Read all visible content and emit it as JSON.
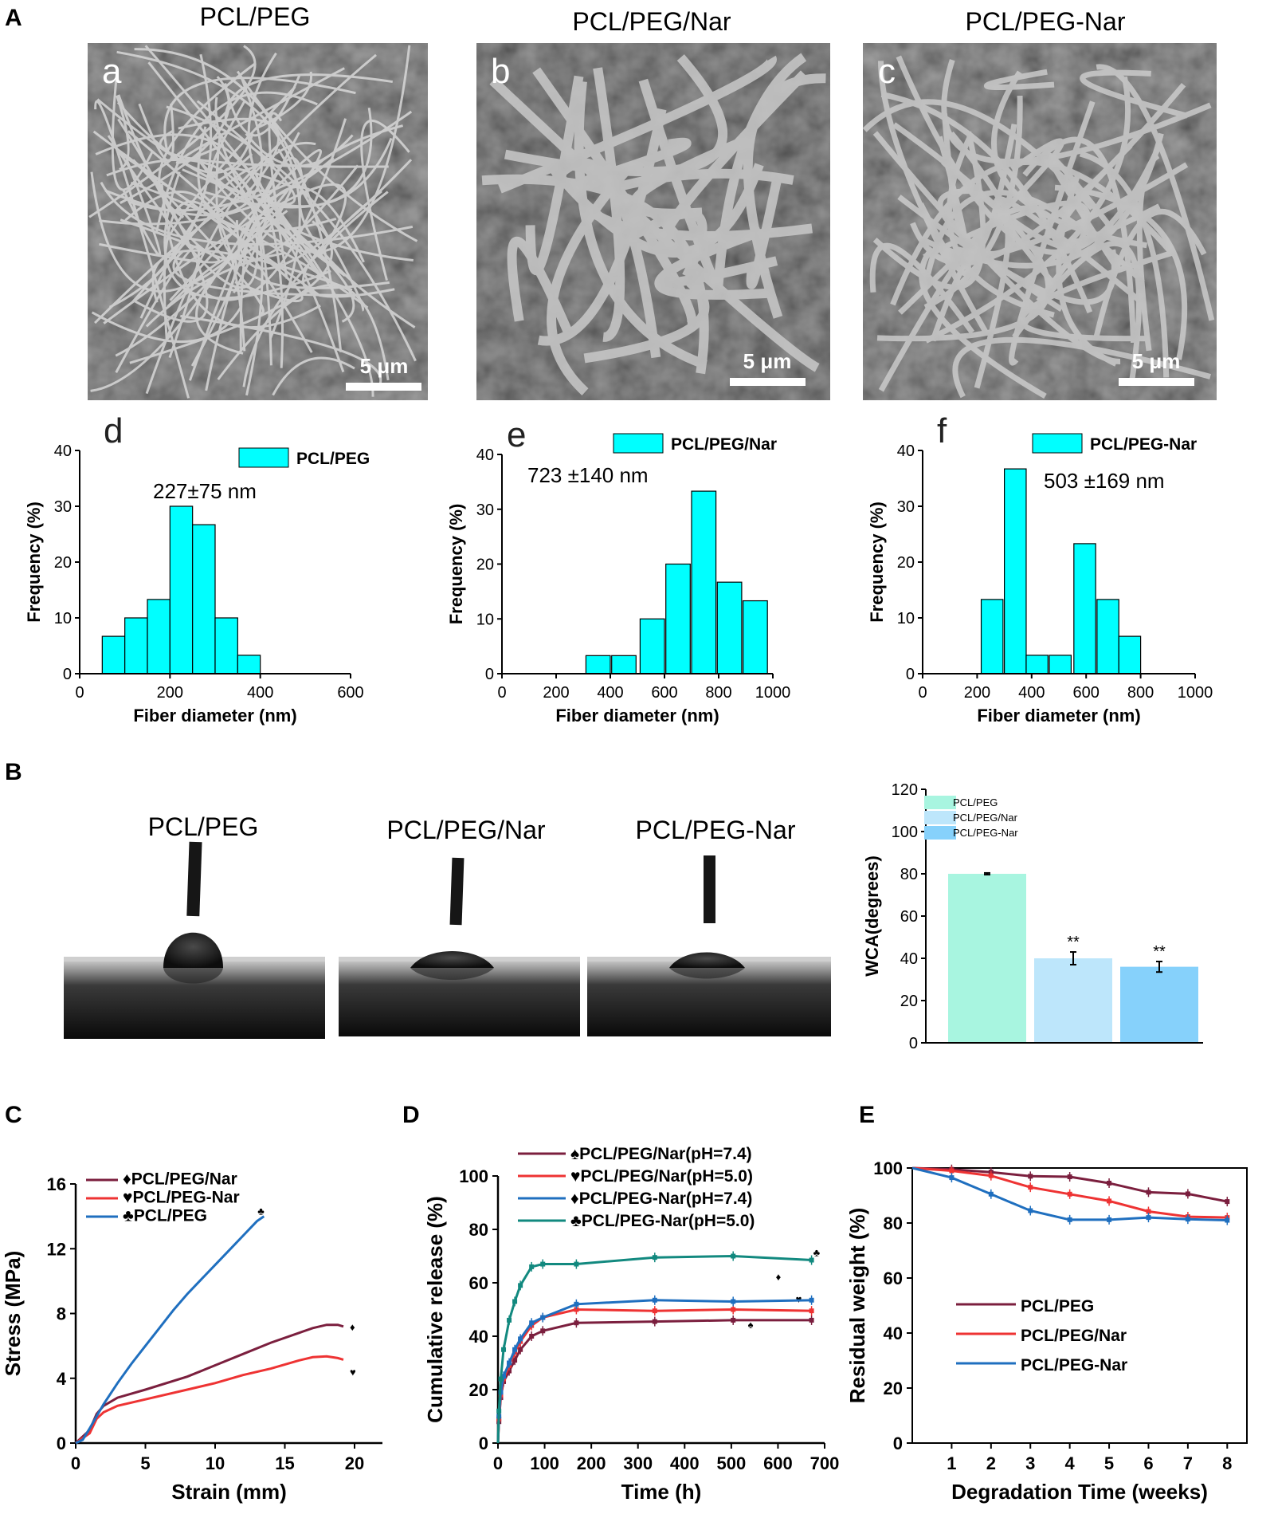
{
  "panel_labels": {
    "A": "A",
    "B": "B",
    "C": "C",
    "D": "D",
    "E": "E"
  },
  "sem": {
    "titles": [
      "PCL/PEG",
      "PCL/PEG/Nar",
      "PCL/PEG-Nar"
    ],
    "letters": [
      "a",
      "b",
      "c"
    ],
    "scale_bar": "5 μm"
  },
  "contact": {
    "titles": [
      "PCL/PEG",
      "PCL/PEG/Nar",
      "PCL/PEG-Nar"
    ]
  },
  "colors": {
    "hist": "#00ffff",
    "maroon": "#7b1f3e",
    "red": "#ee3333",
    "blue": "#1f6fbf",
    "teal": "#12897f",
    "wca1": "#a8f5e0",
    "wca2": "#bde6fb",
    "wca3": "#86d1fb"
  },
  "chart_data": [
    {
      "id": "d",
      "type": "bar",
      "letter": "d",
      "legend": "PCL/PEG",
      "annotation": "227±75 nm",
      "xlabel": "Fiber diameter (nm)",
      "ylabel": "Frequency (%)",
      "xlim": [
        0,
        600
      ],
      "ylim": [
        0,
        40
      ],
      "xticks": [
        0,
        200,
        400,
        600
      ],
      "yticks": [
        0,
        10,
        20,
        30,
        40
      ],
      "bin_width": 50,
      "bins": [
        {
          "center": 75,
          "value": 6.7
        },
        {
          "center": 125,
          "value": 10
        },
        {
          "center": 175,
          "value": 13.3
        },
        {
          "center": 225,
          "value": 30
        },
        {
          "center": 275,
          "value": 26.7
        },
        {
          "center": 325,
          "value": 10
        },
        {
          "center": 375,
          "value": 3.3
        }
      ]
    },
    {
      "id": "e",
      "type": "bar",
      "letter": "e",
      "legend": "PCL/PEG/Nar",
      "annotation": "723 ±140 nm",
      "xlabel": "Fiber diameter (nm)",
      "ylabel": "Frequency (%)",
      "xlim": [
        0,
        1000
      ],
      "ylim": [
        0,
        40
      ],
      "xticks": [
        0,
        200,
        400,
        600,
        800,
        1000
      ],
      "yticks": [
        0,
        10,
        20,
        30,
        40
      ],
      "bin_width": 90,
      "bins": [
        {
          "center": 355,
          "value": 3.3
        },
        {
          "center": 450,
          "value": 3.3
        },
        {
          "center": 555,
          "value": 10
        },
        {
          "center": 650,
          "value": 20
        },
        {
          "center": 745,
          "value": 33.3
        },
        {
          "center": 840,
          "value": 16.7
        },
        {
          "center": 935,
          "value": 13.3
        }
      ]
    },
    {
      "id": "f",
      "type": "bar",
      "letter": "f",
      "legend": "PCL/PEG-Nar",
      "annotation": "503 ±169 nm",
      "xlabel": "Fiber diameter (nm)",
      "ylabel": "Frequency (%)",
      "xlim": [
        0,
        1000
      ],
      "ylim": [
        0,
        40
      ],
      "xticks": [
        0,
        200,
        400,
        600,
        800,
        1000
      ],
      "yticks": [
        0,
        10,
        20,
        30,
        40
      ],
      "bin_width": 80,
      "bins": [
        {
          "center": 255,
          "value": 13.3
        },
        {
          "center": 340,
          "value": 36.7
        },
        {
          "center": 420,
          "value": 3.3
        },
        {
          "center": 505,
          "value": 3.3
        },
        {
          "center": 595,
          "value": 23.3
        },
        {
          "center": 680,
          "value": 13.3
        },
        {
          "center": 760,
          "value": 6.7
        }
      ]
    },
    {
      "id": "wca",
      "type": "bar",
      "ylabel": "WCA(degrees)",
      "ylim": [
        0,
        120
      ],
      "yticks": [
        0,
        20,
        40,
        60,
        80,
        100,
        120
      ],
      "categories": [
        "PCL/PEG",
        "PCL/PEG/Nar",
        "PCL/PEG-Nar"
      ],
      "values": [
        80,
        40,
        36
      ],
      "errors": [
        0.4,
        3,
        2.5
      ],
      "significance": [
        "",
        "**",
        "**"
      ]
    },
    {
      "id": "C",
      "type": "line",
      "xlabel": "Strain (mm)",
      "ylabel": "Stress (MPa)",
      "xlim": [
        0,
        22
      ],
      "ylim": [
        0,
        16
      ],
      "xticks": [
        0,
        5,
        10,
        15,
        20
      ],
      "yticks": [
        0,
        4,
        8,
        12,
        16
      ],
      "series": [
        {
          "name": "♦PCL/PEG/Nar",
          "marker": "♦",
          "x": [
            0,
            1,
            1.5,
            2,
            3,
            5,
            8,
            10,
            12,
            14,
            16,
            17,
            18,
            18.8,
            19.2
          ],
          "y": [
            0,
            0.8,
            1.8,
            2.3,
            2.8,
            3.3,
            4.1,
            4.8,
            5.5,
            6.2,
            6.8,
            7.1,
            7.3,
            7.3,
            7.2
          ]
        },
        {
          "name": "♥PCL/PEG-Nar",
          "marker": "♥",
          "x": [
            0,
            1,
            1.5,
            2,
            3,
            5,
            8,
            10,
            12,
            14,
            16,
            17,
            18,
            18.8,
            19.2
          ],
          "y": [
            0,
            0.6,
            1.5,
            1.9,
            2.3,
            2.7,
            3.3,
            3.7,
            4.2,
            4.6,
            5.1,
            5.3,
            5.35,
            5.25,
            5.15
          ]
        },
        {
          "name": "♣PCL/PEG",
          "marker": "♣",
          "x": [
            0,
            0.5,
            1,
            2,
            3,
            4,
            5,
            6,
            7,
            8,
            9,
            10,
            11,
            12,
            13,
            13.5
          ],
          "y": [
            0,
            0.2,
            0.9,
            2.4,
            3.7,
            4.9,
            6.0,
            7.1,
            8.2,
            9.2,
            10.1,
            11.0,
            11.9,
            12.8,
            13.7,
            14.0
          ]
        }
      ]
    },
    {
      "id": "D",
      "type": "line",
      "xlabel": "Time (h)",
      "ylabel": "Cumulative release (%)",
      "xlim": [
        0,
        700
      ],
      "ylim": [
        0,
        100
      ],
      "xticks": [
        0,
        100,
        200,
        300,
        400,
        500,
        600,
        700
      ],
      "yticks": [
        0,
        20,
        40,
        60,
        80,
        100
      ],
      "series": [
        {
          "name": "♠PCL/PEG/Nar(pH=7.4)",
          "marker": "♠",
          "x": [
            0,
            2,
            6,
            12,
            24,
            36,
            48,
            72,
            96,
            168,
            336,
            504,
            672
          ],
          "y": [
            0,
            8,
            17,
            23,
            27,
            31,
            35,
            40,
            42,
            45,
            45.5,
            46,
            46
          ]
        },
        {
          "name": "♥PCL/PEG/Nar(pH=5.0)",
          "marker": "♥",
          "x": [
            0,
            2,
            6,
            12,
            24,
            36,
            48,
            72,
            96,
            168,
            336,
            504,
            672
          ],
          "y": [
            0,
            9,
            18,
            24,
            29,
            34,
            38,
            44,
            47,
            50,
            49.5,
            50,
            49.5
          ]
        },
        {
          "name": "♦PCL/PEG-Nar(pH=7.4)",
          "marker": "♦",
          "x": [
            0,
            2,
            6,
            12,
            24,
            36,
            48,
            72,
            96,
            168,
            336,
            504,
            672
          ],
          "y": [
            0,
            10,
            19,
            25,
            30,
            35,
            39,
            45,
            47,
            52,
            53.5,
            53,
            53.5
          ]
        },
        {
          "name": "♣PCL/PEG-Nar(pH=5.0)",
          "marker": "♣",
          "x": [
            0,
            2,
            6,
            12,
            24,
            36,
            48,
            72,
            96,
            168,
            336,
            504,
            672
          ],
          "y": [
            0,
            12,
            24,
            35,
            46,
            53,
            59,
            66,
            67,
            67,
            69.5,
            70,
            68.5
          ]
        }
      ]
    },
    {
      "id": "E",
      "type": "line",
      "xlabel": "Degradation Time (weeks)",
      "ylabel": "Residual weight (%)",
      "xlim": [
        0,
        8.5
      ],
      "ylim": [
        0,
        100
      ],
      "xticks": [
        1,
        2,
        3,
        4,
        5,
        6,
        7,
        8
      ],
      "yticks": [
        0,
        20,
        40,
        60,
        80,
        100
      ],
      "series": [
        {
          "name": "PCL/PEG",
          "x": [
            0,
            1,
            2,
            3,
            4,
            5,
            6,
            7,
            8
          ],
          "y": [
            100,
            99.5,
            98.5,
            97,
            96.8,
            94.5,
            91.2,
            90.6,
            87.8
          ]
        },
        {
          "name": "PCL/PEG/Nar",
          "x": [
            0,
            1,
            2,
            3,
            4,
            5,
            6,
            7,
            8
          ],
          "y": [
            100,
            99,
            97.2,
            93,
            90.5,
            88,
            84.2,
            82.3,
            82
          ]
        },
        {
          "name": "PCL/PEG-Nar",
          "x": [
            0,
            1,
            2,
            3,
            4,
            5,
            6,
            7,
            8
          ],
          "y": [
            100,
            96.5,
            90.5,
            84.5,
            81.2,
            81.2,
            82,
            81.4,
            81
          ]
        }
      ]
    }
  ]
}
